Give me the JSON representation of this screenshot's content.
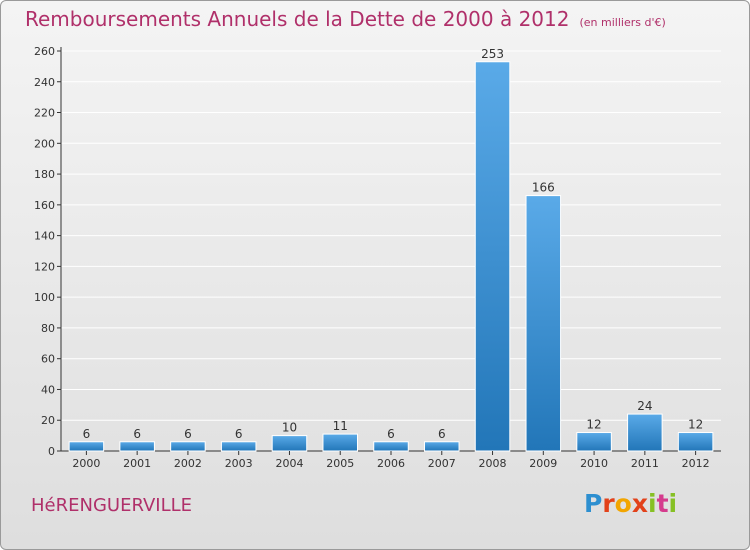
{
  "page": {
    "title": "Remboursements Annuels de la Dette de 2000 à 2012",
    "unit": "(en milliers d'€)",
    "city": "HéRENGUERVILLE",
    "logo": "Proxiti"
  },
  "colors": {
    "title": "#b0306a",
    "bar_light": "#5aaae8",
    "bar_dark": "#2276b8",
    "grid": "#ffffff",
    "axis": "#333333"
  },
  "chart_data": {
    "type": "bar",
    "title": "Remboursements Annuels de la Dette de 2000 à 2012",
    "subtitle": "(en milliers d'€)",
    "xlabel": "",
    "ylabel": "",
    "categories": [
      "2000",
      "2001",
      "2002",
      "2003",
      "2004",
      "2005",
      "2006",
      "2007",
      "2008",
      "2009",
      "2010",
      "2011",
      "2012"
    ],
    "values": [
      6,
      6,
      6,
      6,
      10,
      11,
      6,
      6,
      253,
      166,
      12,
      24,
      12
    ],
    "ylim": [
      0,
      260
    ],
    "yticks": [
      0,
      20,
      40,
      60,
      80,
      100,
      120,
      140,
      160,
      180,
      200,
      220,
      240,
      260
    ],
    "grid": true,
    "legend": "none"
  }
}
